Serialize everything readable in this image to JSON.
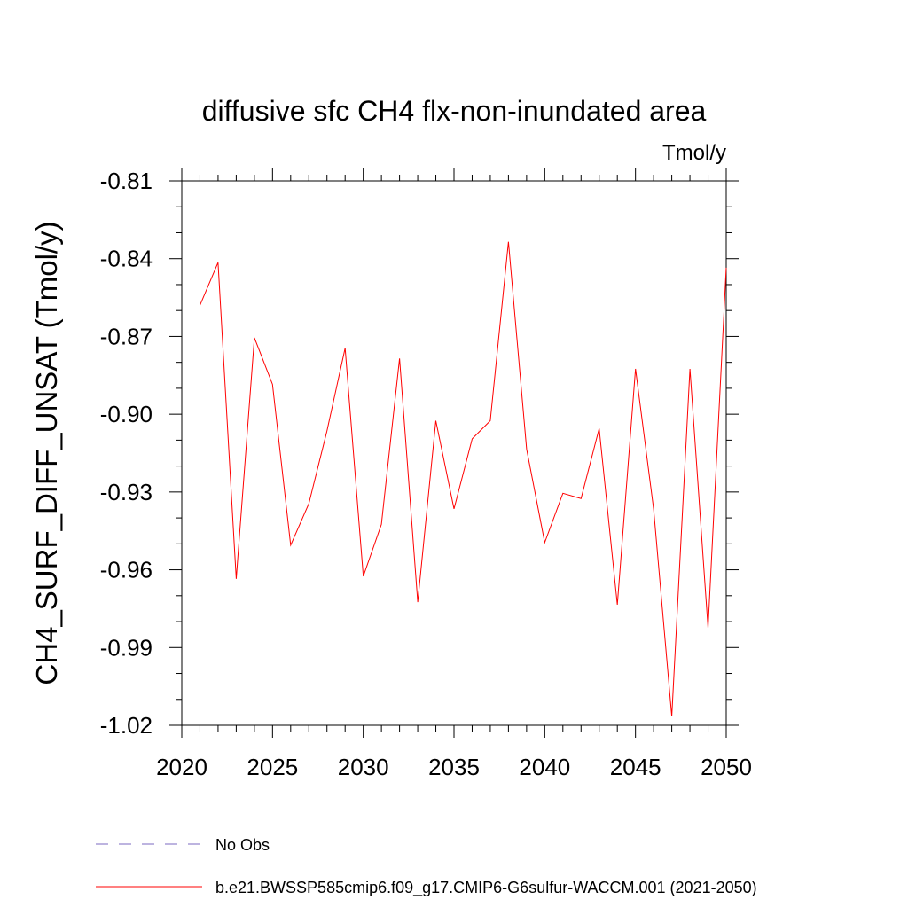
{
  "chart_data": {
    "type": "line",
    "title": "diffusive sfc CH4 flx-non-inundated area",
    "units": "Tmol/y",
    "ylabel": "CH4_SURF_DIFF_UNSAT  (Tmol/y)",
    "xlabel": "",
    "xlim": [
      2020,
      2050
    ],
    "ylim": [
      -1.02,
      -0.81
    ],
    "xticks": [
      2020,
      2025,
      2030,
      2035,
      2040,
      2045,
      2050
    ],
    "yticks": [
      -0.81,
      -0.84,
      -0.87,
      -0.9,
      -0.93,
      -0.96,
      -0.99,
      -1.02
    ],
    "ytick_labels": [
      "-0.81",
      "-0.84",
      "-0.87",
      "-0.90",
      "-0.93",
      "-0.96",
      "-0.99",
      "-1.02"
    ],
    "grid": false,
    "legend_position": "bottom-left",
    "series": [
      {
        "name": "b.e21.BWSSP585cmip6.f09_g17.CMIP6-G6sulfur-WACCM.001 (2021-2050)",
        "color": "#ff0000",
        "style": "solid",
        "x": [
          2021,
          2022,
          2023,
          2024,
          2025,
          2026,
          2027,
          2028,
          2029,
          2030,
          2031,
          2032,
          2033,
          2034,
          2035,
          2036,
          2037,
          2038,
          2039,
          2040,
          2041,
          2042,
          2043,
          2044,
          2045,
          2046,
          2047,
          2048,
          2049,
          2050
        ],
        "values": [
          -0.858,
          -0.8415,
          -0.9635,
          -0.8705,
          -0.8885,
          -0.9505,
          -0.9345,
          -0.9065,
          -0.8745,
          -0.9625,
          -0.9425,
          -0.8785,
          -0.9725,
          -0.9025,
          -0.9365,
          -0.9095,
          -0.9025,
          -0.8335,
          -0.9135,
          -0.9495,
          -0.9305,
          -0.9325,
          -0.9055,
          -0.9735,
          -0.8825,
          -0.9365,
          -1.0165,
          -0.8825,
          -0.9825,
          -0.8435
        ]
      }
    ],
    "legend": [
      {
        "label": "No Obs",
        "color": "#7b68c0",
        "style": "dashed"
      },
      {
        "label": "b.e21.BWSSP585cmip6.f09_g17.CMIP6-G6sulfur-WACCM.001 (2021-2050)",
        "color": "#ff0000",
        "style": "solid"
      }
    ]
  }
}
